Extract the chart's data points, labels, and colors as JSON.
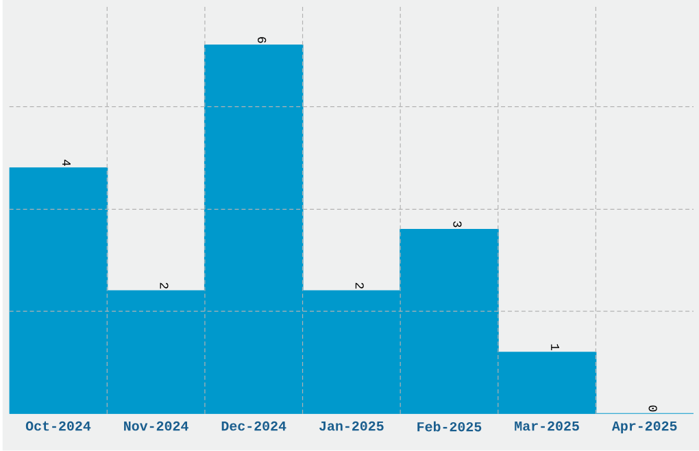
{
  "chart_data": {
    "type": "bar",
    "categories": [
      "Oct-2024",
      "Nov-2024",
      "Dec-2024",
      "Jan-2025",
      "Feb-2025",
      "Mar-2025",
      "Apr-2025"
    ],
    "values": [
      4,
      2,
      6,
      2,
      3,
      1,
      0
    ],
    "color": "#0099cc",
    "ylim": [
      0,
      6.67
    ],
    "yticks": [
      {
        "value": 1.67,
        "label": null
      },
      {
        "value": 3.33,
        "label": null
      },
      {
        "value": 5,
        "label": null
      }
    ],
    "tick_labels": "x",
    "grid": true,
    "data_labels": true
  }
}
